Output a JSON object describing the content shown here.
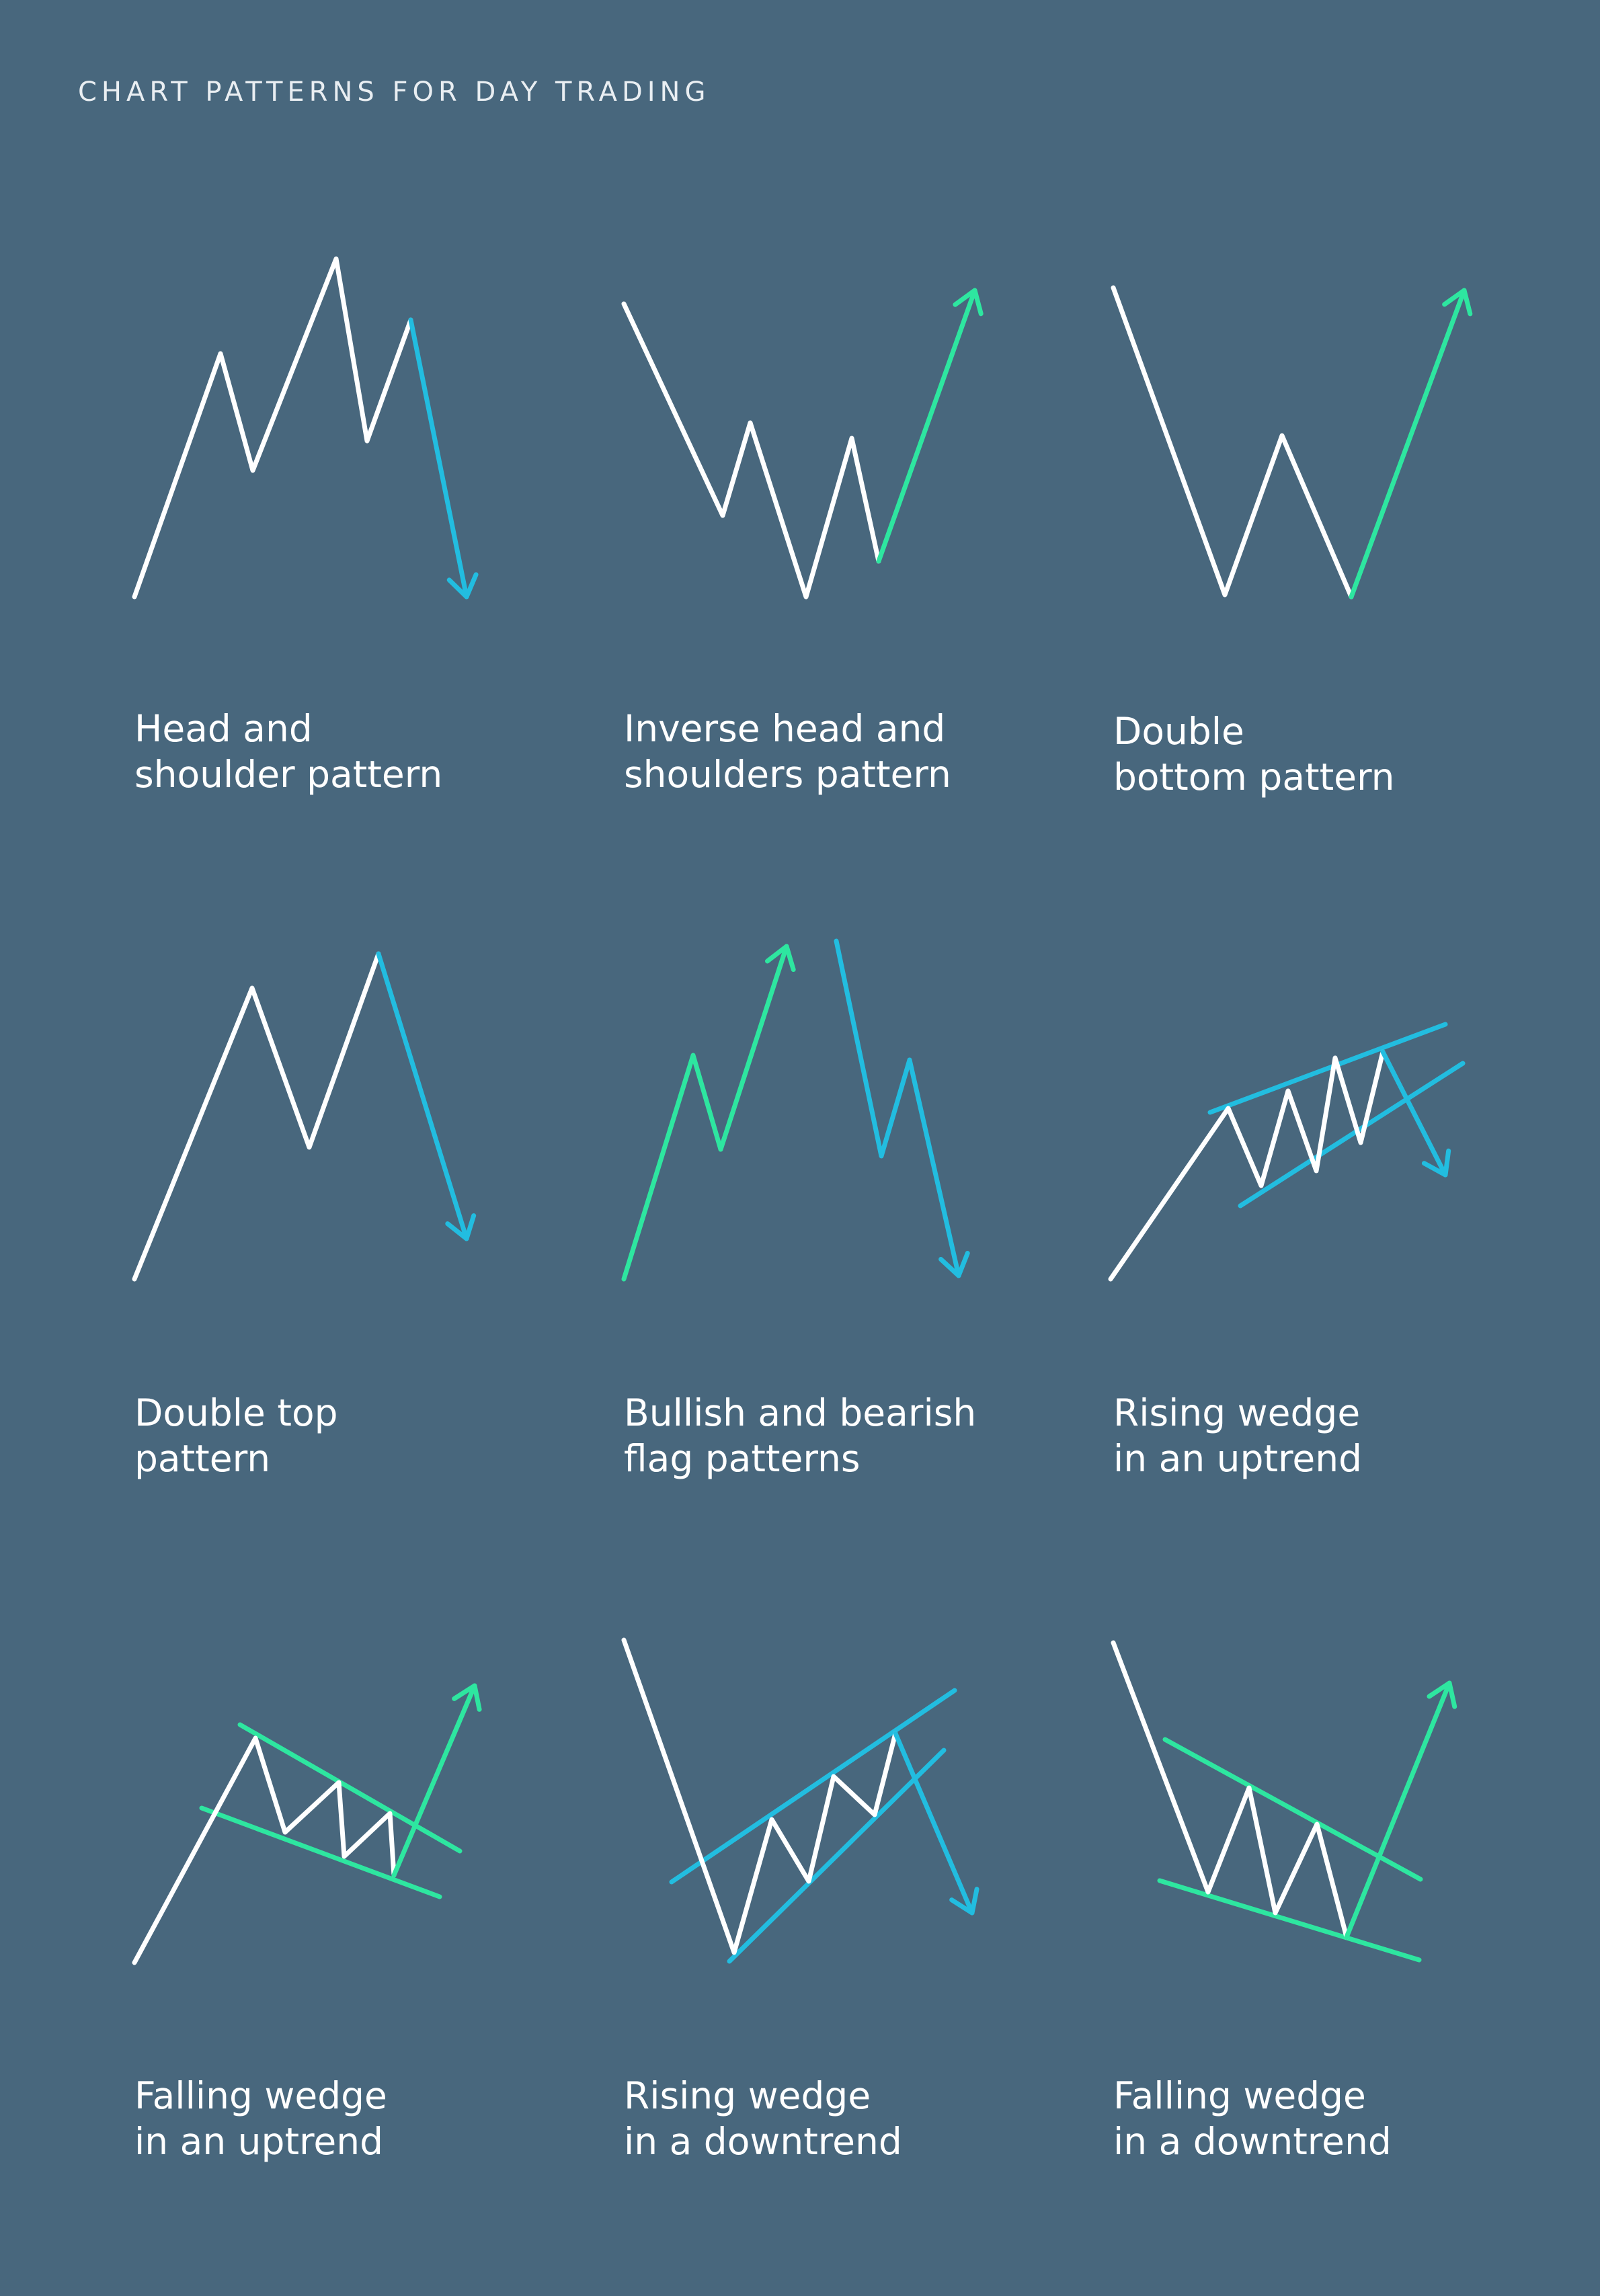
{
  "header": {
    "title": "CHART PATTERNS FOR DAY TRADING"
  },
  "colors": {
    "background": "#48677D",
    "neutral": "#FFFFFF",
    "bullish": "#2EE6A0",
    "bearish": "#22BDE0"
  },
  "patterns": [
    {
      "id": "head-and-shoulder",
      "line1": "Head and",
      "line2": "shoulder pattern"
    },
    {
      "id": "inverse-head-and-shoulders",
      "line1": "Inverse head and",
      "line2": "shoulders pattern"
    },
    {
      "id": "double-bottom",
      "line1": "Double",
      "line2": "bottom pattern"
    },
    {
      "id": "double-top",
      "line1": "Double top",
      "line2": "pattern"
    },
    {
      "id": "bullish-bearish-flag",
      "line1": "Bullish and bearish",
      "line2": "flag patterns"
    },
    {
      "id": "rising-wedge-uptrend",
      "line1": "Rising wedge",
      "line2": "in an uptrend"
    },
    {
      "id": "falling-wedge-uptrend",
      "line1": "Falling wedge",
      "line2": "in an uptrend"
    },
    {
      "id": "rising-wedge-downtrend",
      "line1": "Rising wedge",
      "line2": "in a downtrend"
    },
    {
      "id": "falling-wedge-downtrend",
      "line1": "Falling wedge",
      "line2": "in a downtrend"
    }
  ]
}
